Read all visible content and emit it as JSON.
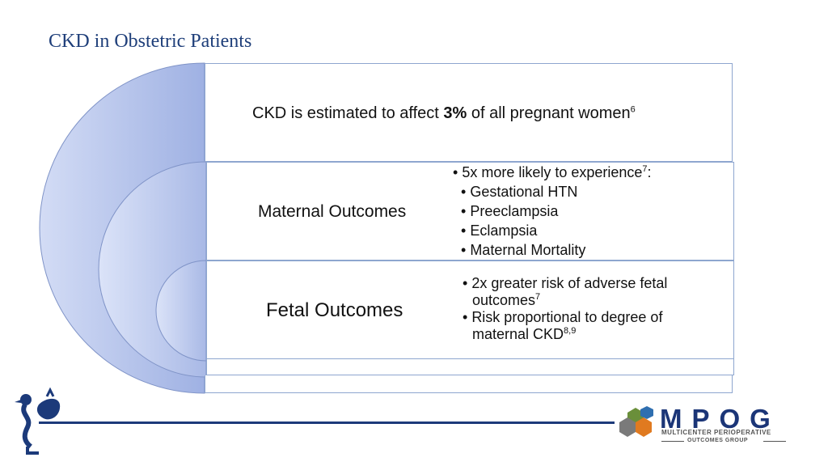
{
  "slide": {
    "title": "CKD in Obstetric Patients"
  },
  "statement": {
    "prefix": "CKD is estimated to affect ",
    "highlight": "3%",
    "suffix": " of all pregnant women",
    "ref": "6"
  },
  "maternal": {
    "label": "Maternal Outcomes",
    "lead": "5x more likely to experience",
    "lead_ref": "7",
    "lead_suffix": ":",
    "items": [
      "Gestational HTN",
      "Preeclampsia",
      "Eclampsia",
      "Maternal Mortality"
    ]
  },
  "fetal": {
    "label": "Fetal Outcomes",
    "b1_line1": "2x greater risk of adverse fetal",
    "b1_line2": "outcomes",
    "b1_ref": "7",
    "b2_line1": "Risk proportional to degree of",
    "b2_line2": "maternal CKD",
    "b2_ref": "8,9"
  },
  "logo": {
    "word": "MPOG",
    "sub1": "MULTICENTER PERIOPERATIVE",
    "sub2": "OUTCOMES GROUP"
  },
  "colors": {
    "title": "#1f3f7a",
    "arc_fill": "#aebde8",
    "border": "#8ea6cf",
    "footer_line": "#1c3a7a"
  }
}
